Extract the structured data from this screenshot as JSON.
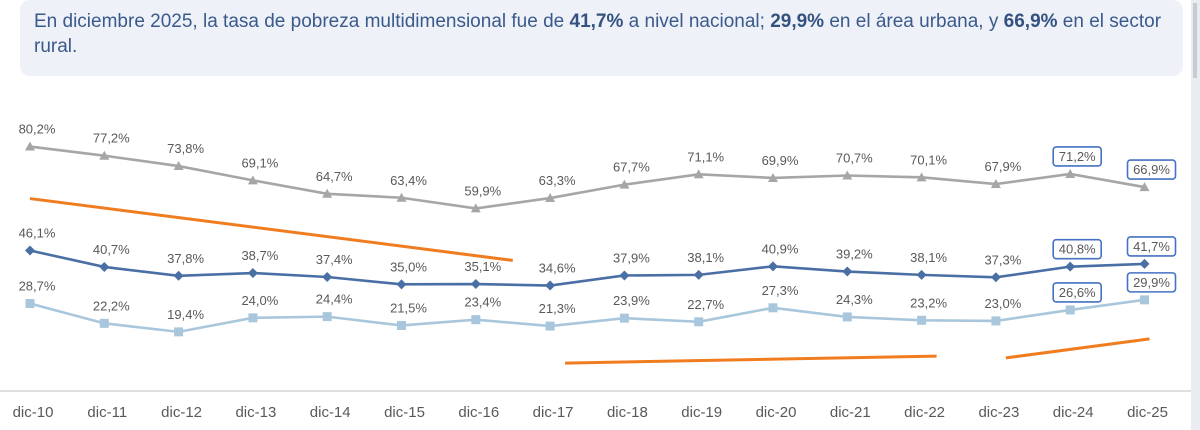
{
  "header": {
    "t1": "En diciembre 2025, la tasa de pobreza multidimensional fue de ",
    "v_nacional": "41,7%",
    "t2": " a nivel nacional; ",
    "v_urbana": "29,9%",
    "t3": " en el área urbana, y ",
    "v_rural": "66,9%",
    "t4": " en el sector rural."
  },
  "colors": {
    "rural": "#a6a6a6",
    "nacional": "#4a6fa5",
    "urbana": "#a9c7dc",
    "trend": "#f07c20",
    "highlight": "#4472c4",
    "axis": "#bfbfbf"
  },
  "chart_data": {
    "type": "line",
    "categories": [
      "dic-10",
      "dic-11",
      "dic-12",
      "dic-13",
      "dic-14",
      "dic-15",
      "dic-16",
      "dic-17",
      "dic-18",
      "dic-19",
      "dic-20",
      "dic-21",
      "dic-22",
      "dic-23",
      "dic-24",
      "dic-25"
    ],
    "ylim": [
      0,
      90
    ],
    "series": [
      {
        "name": "Rural",
        "marker": "triangle",
        "values": [
          80.2,
          77.2,
          73.8,
          69.1,
          64.7,
          63.4,
          59.9,
          63.3,
          67.7,
          71.1,
          69.9,
          70.7,
          70.1,
          67.9,
          71.2,
          66.9
        ],
        "labels": [
          "80,2%",
          "77,2%",
          "73,8%",
          "69,1%",
          "64,7%",
          "63,4%",
          "59,9%",
          "63,3%",
          "67,7%",
          "71,1%",
          "69,9%",
          "70,7%",
          "70,1%",
          "67,9%",
          "71,2%",
          "66,9%"
        ]
      },
      {
        "name": "Nacional",
        "marker": "diamond",
        "values": [
          46.1,
          40.7,
          37.8,
          38.7,
          37.4,
          35.0,
          35.1,
          34.6,
          37.9,
          38.1,
          40.9,
          39.2,
          38.1,
          37.3,
          40.8,
          41.7
        ],
        "labels": [
          "46,1%",
          "40,7%",
          "37,8%",
          "38,7%",
          "37,4%",
          "35,0%",
          "35,1%",
          "34,6%",
          "37,9%",
          "38,1%",
          "40,9%",
          "39,2%",
          "38,1%",
          "37,3%",
          "40,8%",
          "41,7%"
        ]
      },
      {
        "name": "Urbana",
        "marker": "square",
        "values": [
          28.7,
          22.2,
          19.4,
          24.0,
          24.4,
          21.5,
          23.4,
          21.3,
          23.9,
          22.7,
          27.3,
          24.3,
          23.2,
          23.0,
          26.6,
          29.9
        ],
        "labels": [
          "28,7%",
          "22,2%",
          "19,4%",
          "24,0%",
          "24,4%",
          "21,5%",
          "23,4%",
          "21,3%",
          "23,9%",
          "22,7%",
          "27,3%",
          "24,3%",
          "23,2%",
          "23,0%",
          "26,6%",
          "29,9%"
        ]
      }
    ],
    "highlighted_categories": [
      "dic-24",
      "dic-25"
    ],
    "trend_lines": [
      {
        "series": "Rural",
        "from": "dic-10",
        "to": "dic-16",
        "direction": "down"
      },
      {
        "series": "Urbana",
        "from": "dic-17",
        "to": "dic-22",
        "direction": "up"
      },
      {
        "series": "Urbana",
        "from": "dic-23",
        "to": "dic-25",
        "direction": "up"
      }
    ]
  }
}
